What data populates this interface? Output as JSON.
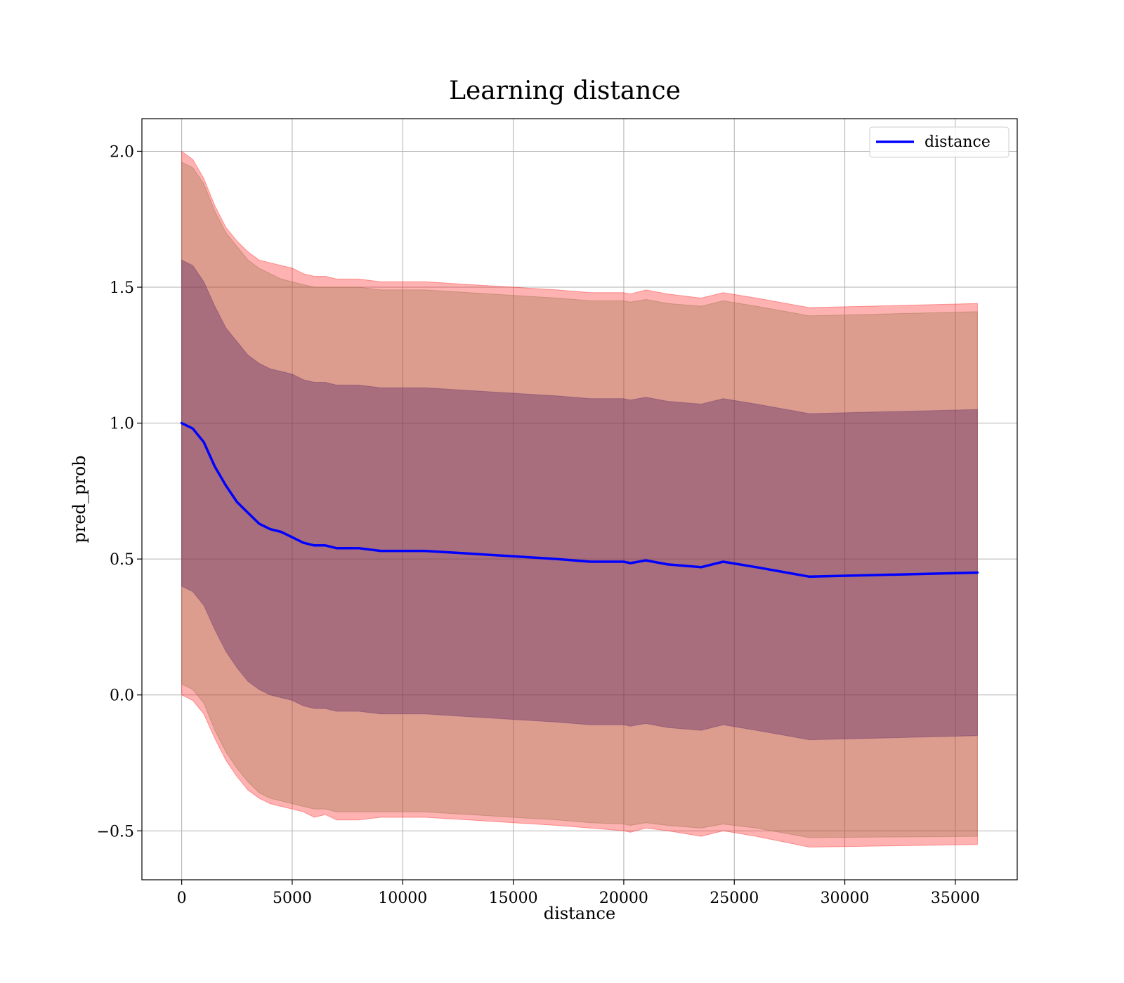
{
  "chart_data": {
    "type": "area",
    "title": "Learning distance",
    "xlabel": "distance",
    "ylabel": "pred_prob",
    "xlim": [
      -1800,
      37800
    ],
    "ylim": [
      -0.68,
      2.12
    ],
    "xticks": [
      0,
      5000,
      10000,
      15000,
      20000,
      25000,
      30000,
      35000
    ],
    "xtick_labels": [
      "0",
      "5000",
      "10000",
      "15000",
      "20000",
      "25000",
      "30000",
      "35000"
    ],
    "yticks": [
      -0.5,
      0.0,
      0.5,
      1.0,
      1.5,
      2.0
    ],
    "ytick_labels": [
      "−0.5",
      "0.0",
      "0.5",
      "1.0",
      "1.5",
      "2.0"
    ],
    "grid": true,
    "legend_position": "top-right",
    "colors": {
      "line": "#0000ff",
      "outer_band": "#ff0000",
      "middle_band": "#8b6a3a",
      "inner_band": "#5b2a66"
    },
    "x": [
      0,
      500,
      1000,
      1500,
      2000,
      2500,
      3000,
      3500,
      4000,
      4500,
      5000,
      5500,
      6000,
      6500,
      7000,
      8000,
      9000,
      10000,
      11000,
      12000,
      13000,
      14000,
      15000,
      16000,
      17000,
      18500,
      20000,
      20300,
      21000,
      22000,
      23500,
      24500,
      26000,
      28400,
      36000
    ],
    "series": [
      {
        "name": "distance",
        "values": [
          1.0,
          0.98,
          0.93,
          0.84,
          0.77,
          0.71,
          0.67,
          0.63,
          0.61,
          0.6,
          0.58,
          0.56,
          0.55,
          0.55,
          0.54,
          0.54,
          0.53,
          0.53,
          0.53,
          0.525,
          0.52,
          0.515,
          0.51,
          0.505,
          0.5,
          0.49,
          0.49,
          0.485,
          0.495,
          0.48,
          0.47,
          0.49,
          0.47,
          0.435,
          0.45
        ]
      }
    ],
    "bands": [
      {
        "role": "outer",
        "upper": [
          2.0,
          1.97,
          1.9,
          1.8,
          1.72,
          1.67,
          1.63,
          1.6,
          1.59,
          1.58,
          1.57,
          1.55,
          1.54,
          1.54,
          1.53,
          1.53,
          1.52,
          1.52,
          1.52,
          1.515,
          1.51,
          1.505,
          1.5,
          1.495,
          1.49,
          1.48,
          1.48,
          1.475,
          1.49,
          1.475,
          1.46,
          1.48,
          1.46,
          1.425,
          1.44
        ],
        "lower": [
          0.0,
          -0.02,
          -0.07,
          -0.16,
          -0.24,
          -0.3,
          -0.35,
          -0.38,
          -0.4,
          -0.41,
          -0.42,
          -0.43,
          -0.45,
          -0.44,
          -0.46,
          -0.46,
          -0.45,
          -0.45,
          -0.45,
          -0.455,
          -0.46,
          -0.465,
          -0.47,
          -0.475,
          -0.48,
          -0.49,
          -0.5,
          -0.505,
          -0.49,
          -0.5,
          -0.52,
          -0.5,
          -0.52,
          -0.56,
          -0.55
        ]
      },
      {
        "role": "middle",
        "upper": [
          1.96,
          1.94,
          1.88,
          1.78,
          1.7,
          1.65,
          1.6,
          1.57,
          1.55,
          1.53,
          1.52,
          1.51,
          1.5,
          1.5,
          1.5,
          1.5,
          1.49,
          1.49,
          1.49,
          1.485,
          1.48,
          1.475,
          1.47,
          1.465,
          1.46,
          1.45,
          1.45,
          1.445,
          1.455,
          1.44,
          1.43,
          1.45,
          1.43,
          1.395,
          1.41
        ],
        "lower": [
          0.04,
          0.02,
          -0.03,
          -0.13,
          -0.21,
          -0.27,
          -0.32,
          -0.36,
          -0.38,
          -0.39,
          -0.4,
          -0.41,
          -0.42,
          -0.42,
          -0.43,
          -0.43,
          -0.43,
          -0.43,
          -0.43,
          -0.435,
          -0.44,
          -0.445,
          -0.45,
          -0.455,
          -0.46,
          -0.47,
          -0.475,
          -0.48,
          -0.47,
          -0.48,
          -0.49,
          -0.475,
          -0.49,
          -0.525,
          -0.52
        ]
      },
      {
        "role": "inner",
        "upper": [
          1.6,
          1.58,
          1.52,
          1.43,
          1.35,
          1.3,
          1.25,
          1.22,
          1.2,
          1.19,
          1.18,
          1.16,
          1.15,
          1.15,
          1.14,
          1.14,
          1.13,
          1.13,
          1.13,
          1.125,
          1.12,
          1.115,
          1.11,
          1.105,
          1.1,
          1.09,
          1.09,
          1.085,
          1.095,
          1.08,
          1.07,
          1.09,
          1.07,
          1.035,
          1.05
        ],
        "lower": [
          0.4,
          0.38,
          0.33,
          0.24,
          0.16,
          0.1,
          0.05,
          0.02,
          0.0,
          -0.01,
          -0.02,
          -0.04,
          -0.05,
          -0.05,
          -0.06,
          -0.06,
          -0.07,
          -0.07,
          -0.07,
          -0.075,
          -0.08,
          -0.085,
          -0.09,
          -0.095,
          -0.1,
          -0.11,
          -0.11,
          -0.115,
          -0.105,
          -0.12,
          -0.13,
          -0.11,
          -0.13,
          -0.165,
          -0.15
        ]
      }
    ]
  }
}
